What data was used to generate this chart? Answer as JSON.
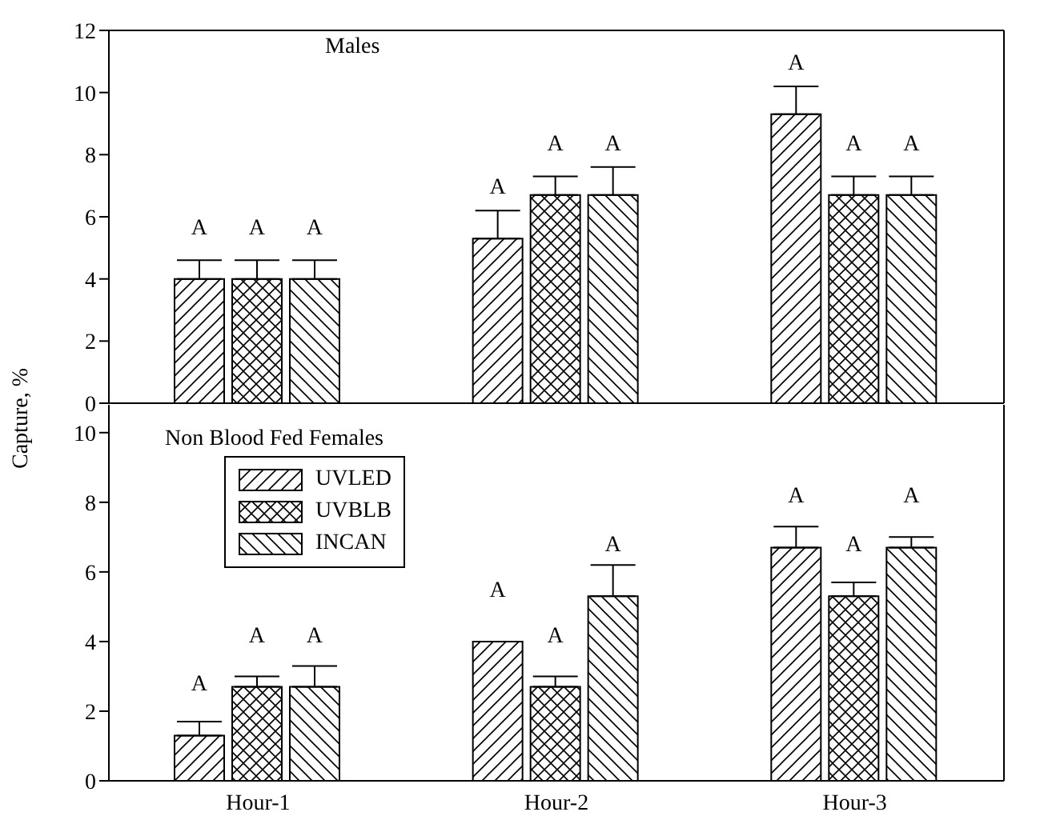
{
  "chart_data": [
    {
      "type": "bar",
      "title": "Males",
      "ylabel": "Capture, %",
      "categories": [
        null,
        null,
        null
      ],
      "series": [
        {
          "color": "#000000",
          "values": [
            4.0,
            5.3,
            9.3
          ],
          "errors": [
            [
              4.0,
              4.6
            ],
            [
              5.3,
              6.2
            ],
            [
              9.3,
              10.2
            ]
          ],
          "value_labels": [
            "A",
            "A",
            "A"
          ]
        },
        {
          "color": "#000000",
          "values": [
            4.0,
            6.7,
            6.7
          ],
          "errors": [
            [
              4.0,
              4.6
            ],
            [
              6.7,
              7.3
            ],
            [
              6.7,
              7.3
            ]
          ],
          "value_labels": [
            "A",
            "A",
            "A"
          ]
        },
        {
          "color": "#000000",
          "values": [
            4.0,
            6.7,
            6.7
          ],
          "errors": [
            [
              4.0,
              4.6
            ],
            [
              6.7,
              7.6
            ],
            [
              6.7,
              7.3
            ]
          ],
          "value_labels": [
            "A",
            "A",
            "A"
          ]
        }
      ],
      "ylim": [
        0,
        12
      ],
      "yticks": [
        0,
        2,
        4,
        6,
        8,
        10,
        12
      ],
      "tick_labels": "y",
      "legend": false
    },
    {
      "type": "bar",
      "title": "Non Blood Fed Females",
      "categories": [
        "Hour-1",
        "Hour-2",
        "Hour-3"
      ],
      "series": [
        {
          "name": "UVLED",
          "color": "#000000",
          "values": [
            1.3,
            4.0,
            6.7
          ],
          "errors": [
            [
              1.3,
              1.7
            ],
            null,
            [
              6.7,
              7.3
            ]
          ],
          "value_labels": [
            "A",
            "A",
            "A"
          ]
        },
        {
          "name": "UVBLB",
          "color": "#000000",
          "values": [
            2.7,
            2.7,
            5.3
          ],
          "errors": [
            [
              2.7,
              3.0
            ],
            [
              2.7,
              3.0
            ],
            [
              5.3,
              5.7
            ]
          ],
          "value_labels": [
            "A",
            "A",
            "A"
          ]
        },
        {
          "name": "INCAN",
          "color": "#000000",
          "values": [
            2.7,
            5.3,
            6.7
          ],
          "errors": [
            [
              2.7,
              3.3
            ],
            [
              5.3,
              6.2
            ],
            [
              6.7,
              7.0
            ]
          ],
          "value_labels": [
            "A",
            "A",
            "A"
          ]
        }
      ],
      "ylim": [
        0,
        10.8
      ],
      "yticks": [
        0,
        2,
        4,
        6,
        8,
        10
      ],
      "legend": "top left"
    }
  ]
}
